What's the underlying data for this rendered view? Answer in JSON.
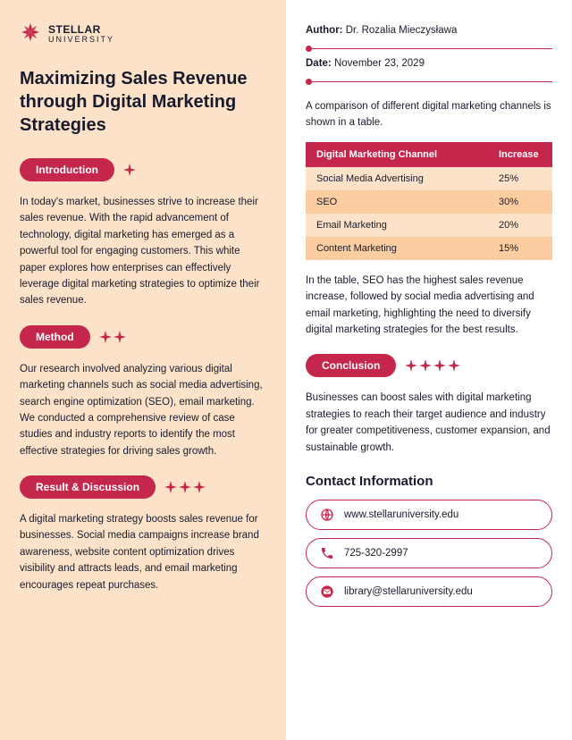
{
  "brand": {
    "line1": "STELLAR",
    "line2": "UNIVERSITY"
  },
  "logo_color": "#c5264c",
  "title": "Maximizing Sales Revenue through Digital Marketing Strategies",
  "sections": {
    "introduction": {
      "label": "Introduction",
      "sparkles": 1,
      "body": "In today's market, businesses strive to increase their sales revenue. With the rapid advancement of technology, digital marketing has emerged as a powerful tool for engaging customers. This white paper explores how enterprises can effectively leverage digital marketing strategies to optimize their sales revenue."
    },
    "method": {
      "label": "Method",
      "sparkles": 2,
      "body": "Our research involved analyzing various digital marketing channels such as social media advertising, search engine optimization (SEO), email marketing. We conducted a comprehensive review of case studies and industry reports to identify the most effective strategies for driving sales growth."
    },
    "result": {
      "label": "Result & Discussion",
      "sparkles": 3,
      "body": "A digital marketing strategy boosts sales revenue for businesses. Social media campaigns increase brand awareness, website content optimization drives visibility and attracts leads, and email marketing encourages repeat purchases."
    },
    "conclusion": {
      "label": "Conclusion",
      "sparkles": 4,
      "body": "Businesses can boost sales with digital marketing strategies to reach their target audience and industry for greater competitiveness, customer expansion, and sustainable growth."
    }
  },
  "meta": {
    "author_label": "Author:",
    "author_value": "Dr. Rozalia Mieczysława",
    "date_label": "Date:",
    "date_value": "November 23, 2029"
  },
  "table": {
    "intro": "A comparison of different digital marketing channels is shown in a table.",
    "columns": [
      "Digital Marketing Channel",
      "Increase"
    ],
    "rows": [
      {
        "channel": "Social Media Advertising",
        "increase": "25%",
        "bg": "#fbe2c8"
      },
      {
        "channel": "SEO",
        "increase": "30%",
        "bg": "#fbcda0"
      },
      {
        "channel": "Email Marketing",
        "increase": "20%",
        "bg": "#fbe2c8"
      },
      {
        "channel": "Content Marketing",
        "increase": "15%",
        "bg": "#fbcda0"
      }
    ],
    "header_bg": "#c5264c",
    "followup": "In the table, SEO has the highest sales revenue increase, followed by social media advertising and email marketing, highlighting the need to diversify digital marketing strategies for the best results."
  },
  "contact": {
    "title": "Contact Information",
    "items": [
      {
        "icon": "globe",
        "value": "www.stellaruniversity.edu"
      },
      {
        "icon": "phone",
        "value": "725-320-2997"
      },
      {
        "icon": "mail",
        "value": "library@stellaruniversity.edu"
      }
    ]
  },
  "colors": {
    "accent": "#c5264c",
    "left_bg": "#fbe2c8",
    "text": "#1a1a2e"
  }
}
